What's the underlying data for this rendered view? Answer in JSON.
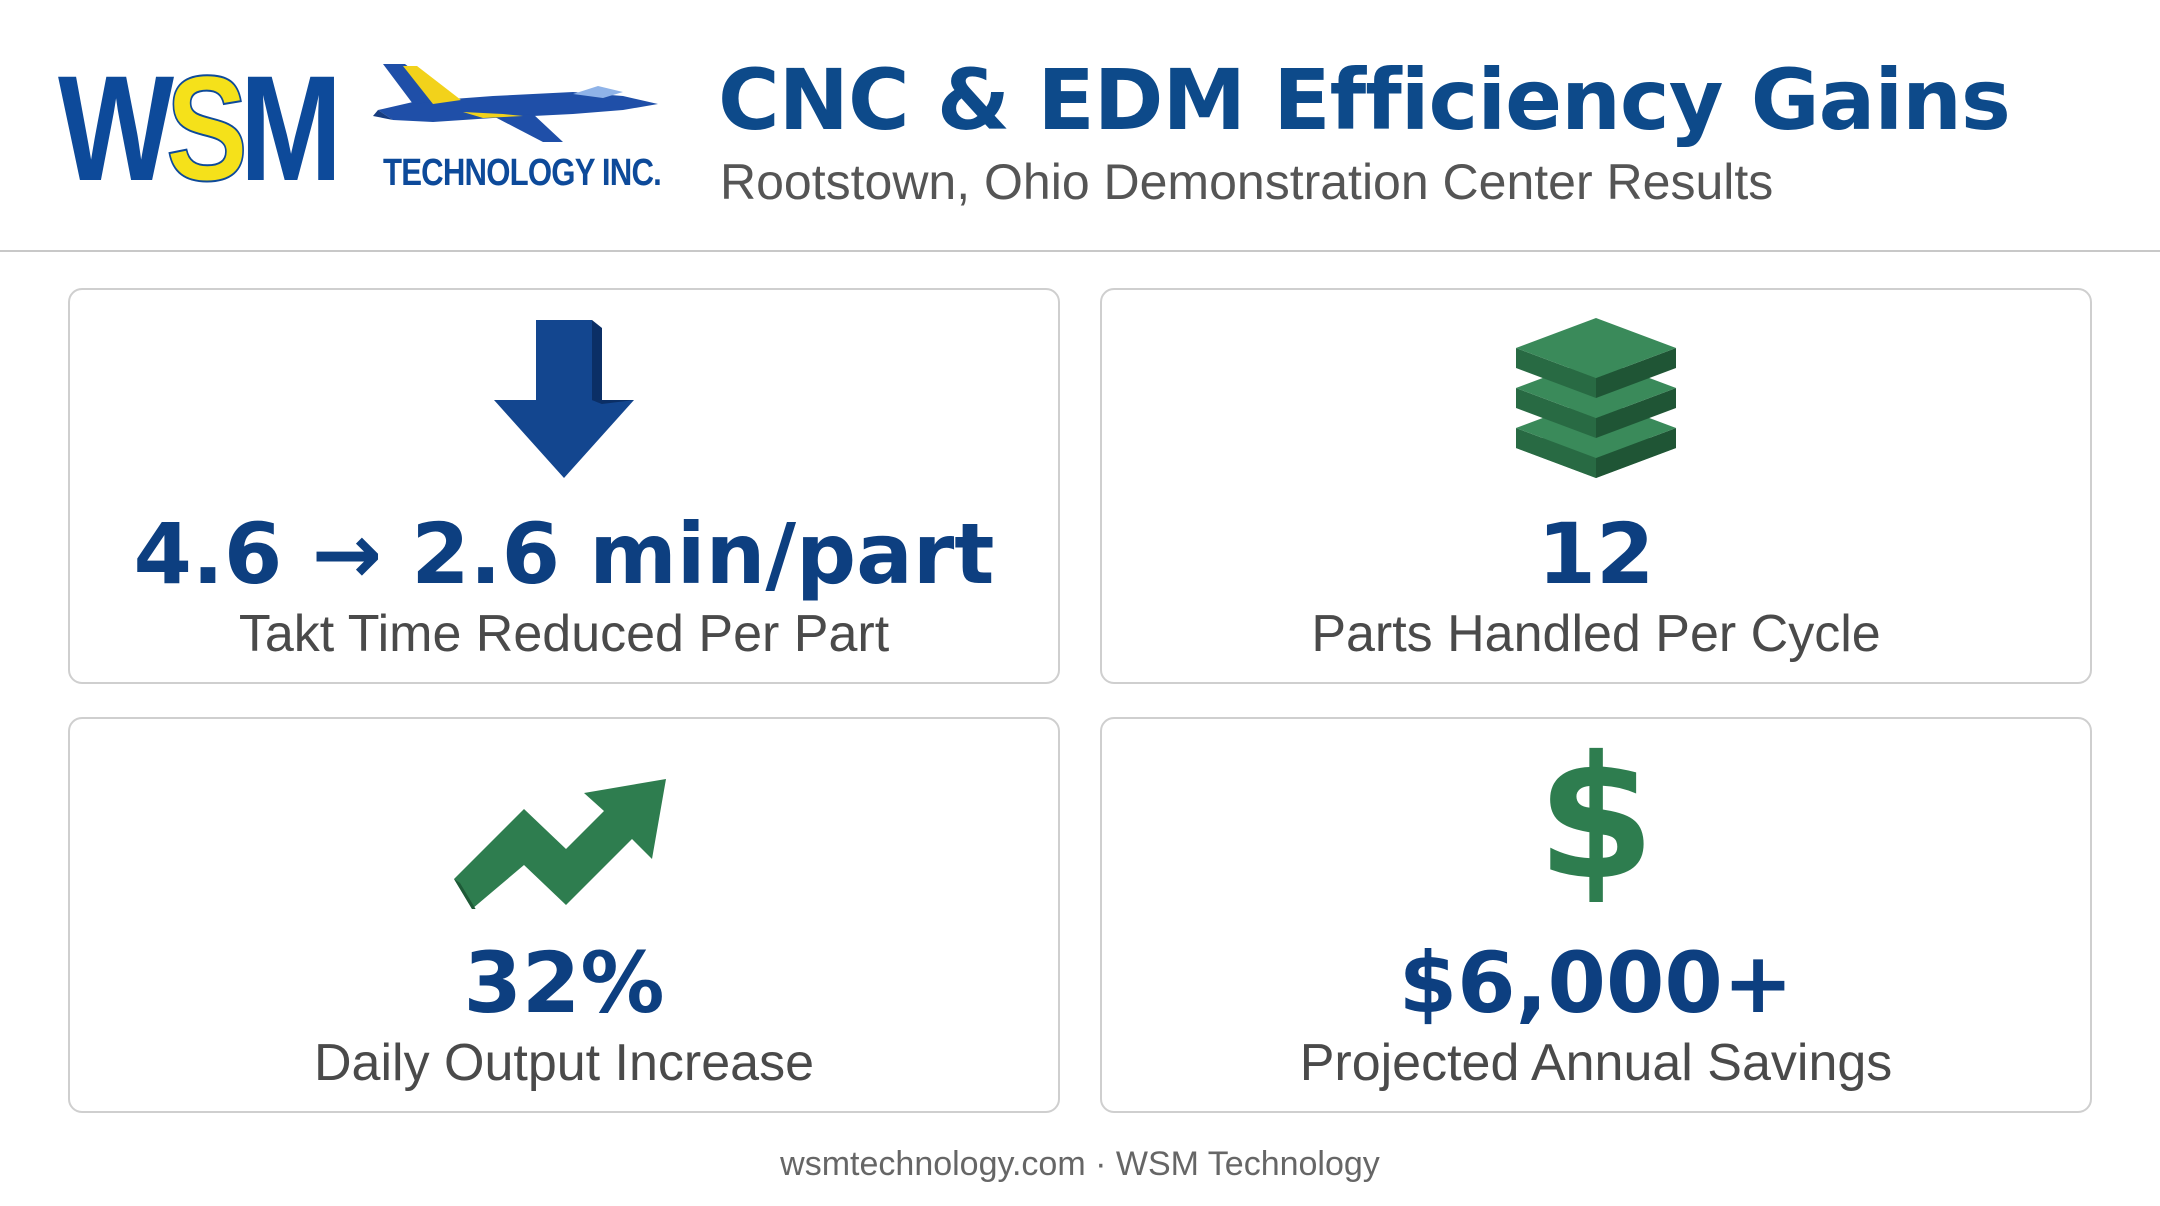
{
  "logo": {
    "wsm_w": "W",
    "wsm_s": "S",
    "wsm_m": "M",
    "tagline": "TECHNOLOGY INC."
  },
  "header": {
    "title": "CNC & EDM Efficiency Gains",
    "subtitle": "Rootstown, Ohio Demonstration Center Results"
  },
  "cards": [
    {
      "icon": "down-arrow-icon",
      "value": "4.6 → 2.6 min/part",
      "label": "Takt Time Reduced Per Part"
    },
    {
      "icon": "stacked-layers-icon",
      "value": "12",
      "label": "Parts Handled Per Cycle"
    },
    {
      "icon": "trend-up-arrow-icon",
      "value": "32%",
      "label": "Daily Output Increase"
    },
    {
      "icon": "dollar-sign-icon",
      "value": "$6,000+",
      "label": "Projected Annual Savings"
    }
  ],
  "footer": {
    "text": "wsmtechnology.com · WSM Technology"
  },
  "colors": {
    "brand_blue": "#0d4a8a",
    "brand_yellow": "#f5e11a",
    "icon_green": "#2e7d4f",
    "icon_blue": "#13468f"
  }
}
